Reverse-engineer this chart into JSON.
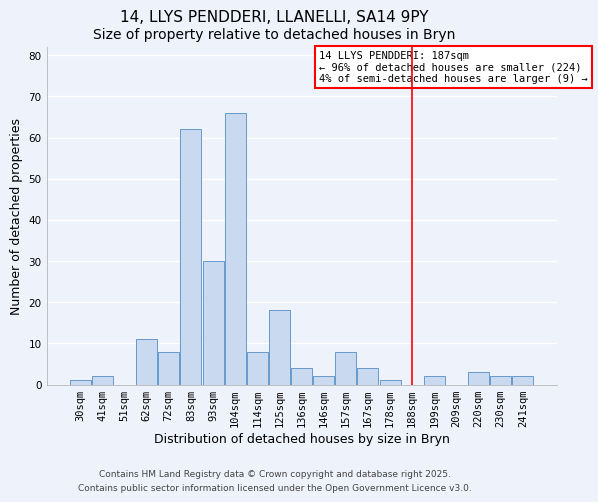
{
  "title": "14, LLYS PENDDERI, LLANELLI, SA14 9PY",
  "subtitle": "Size of property relative to detached houses in Bryn",
  "xlabel": "Distribution of detached houses by size in Bryn",
  "ylabel": "Number of detached properties",
  "bar_labels": [
    "30sqm",
    "41sqm",
    "51sqm",
    "62sqm",
    "72sqm",
    "83sqm",
    "93sqm",
    "104sqm",
    "114sqm",
    "125sqm",
    "136sqm",
    "146sqm",
    "157sqm",
    "167sqm",
    "178sqm",
    "188sqm",
    "199sqm",
    "209sqm",
    "220sqm",
    "230sqm",
    "241sqm"
  ],
  "bar_values": [
    1,
    2,
    0,
    11,
    8,
    62,
    30,
    66,
    8,
    18,
    4,
    2,
    8,
    4,
    1,
    0,
    2,
    0,
    3,
    2,
    2
  ],
  "bar_color": "#c9d9f0",
  "bar_edge_color": "#6699cc",
  "vline_index": 15,
  "vline_color": "red",
  "annotation_title": "14 LLYS PENDDERI: 187sqm",
  "annotation_line1": "← 96% of detached houses are smaller (224)",
  "annotation_line2": "4% of semi-detached houses are larger (9) →",
  "ylim": [
    0,
    82
  ],
  "yticks": [
    0,
    10,
    20,
    30,
    40,
    50,
    60,
    70,
    80
  ],
  "footer1": "Contains HM Land Registry data © Crown copyright and database right 2025.",
  "footer2": "Contains public sector information licensed under the Open Government Licence v3.0.",
  "background_color": "#eef2fb",
  "grid_color": "white",
  "title_fontsize": 11,
  "subtitle_fontsize": 10,
  "axis_label_fontsize": 9,
  "tick_fontsize": 7.5,
  "annotation_fontsize": 7.5,
  "footer_fontsize": 6.5
}
